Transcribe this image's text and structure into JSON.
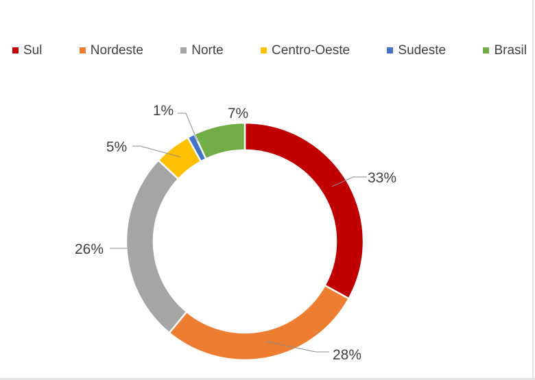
{
  "chart_data": {
    "type": "pie",
    "donut": true,
    "legend_position": "top",
    "categories": [
      "Sul",
      "Nordeste",
      "Norte",
      "Centro-Oeste",
      "Sudeste",
      "Brasil"
    ],
    "values": [
      33,
      28,
      26,
      5,
      1,
      7
    ],
    "data_labels": [
      "33%",
      "28%",
      "26%",
      "5%",
      "1%",
      "7%"
    ],
    "colors": [
      "#c00000",
      "#ed7d31",
      "#a5a5a5",
      "#ffc000",
      "#4472c4",
      "#70ad47"
    ]
  }
}
